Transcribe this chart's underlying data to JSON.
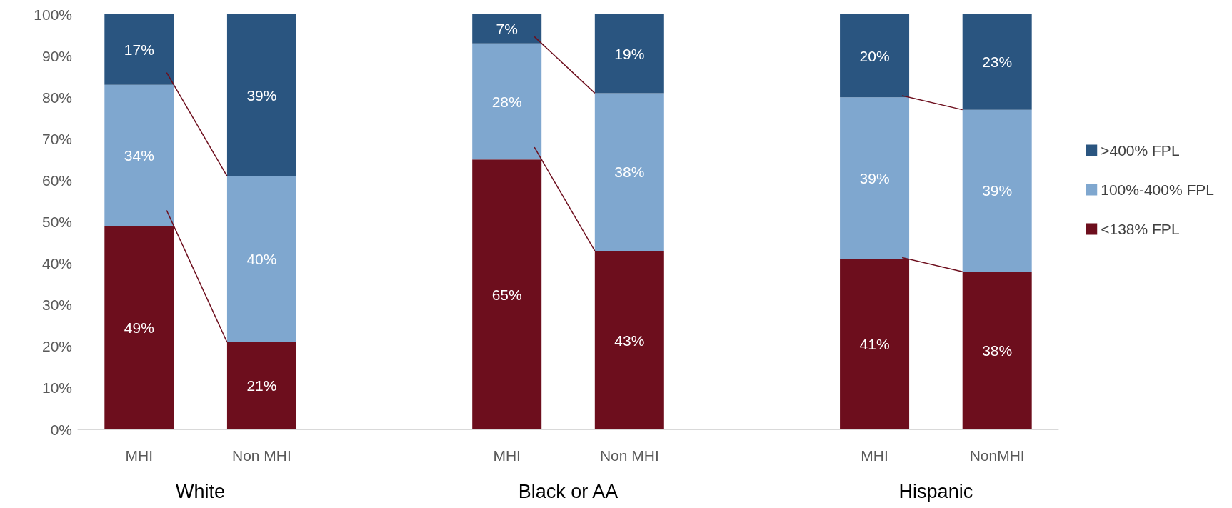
{
  "chart_data": {
    "type": "bar",
    "stacked": true,
    "categories": [
      "MHI",
      "Non MHI",
      null,
      "MHI",
      "Non MHI",
      null,
      "MHI",
      "NonMHI"
    ],
    "series": [
      {
        "name": "<138% FPL",
        "color": "#6d0e1d",
        "values": [
          49,
          21,
          null,
          65,
          43,
          null,
          41,
          38
        ],
        "value_labels": [
          "49%",
          "21%",
          null,
          "65%",
          "43%",
          null,
          "41%",
          "38%"
        ]
      },
      {
        "name": "100%-400% FPL",
        "color": "#7fa7cf",
        "values": [
          34,
          40,
          null,
          28,
          38,
          null,
          39,
          39
        ],
        "value_labels": [
          "34%",
          "40%",
          null,
          "28%",
          "38%",
          null,
          "39%",
          "39%"
        ]
      },
      {
        "name": ">400% FPL",
        "color": "#2a5580",
        "values": [
          17,
          39,
          null,
          7,
          19,
          null,
          20,
          23
        ],
        "value_labels": [
          "17%",
          "39%",
          null,
          "7%",
          "19%",
          null,
          "20%",
          "23%"
        ]
      }
    ],
    "ylim": [
      0,
      100
    ],
    "yticks": [
      {
        "value": 0,
        "label": "0%"
      },
      {
        "value": 10,
        "label": "10%"
      },
      {
        "value": 20,
        "label": "20%"
      },
      {
        "value": 30,
        "label": "30%"
      },
      {
        "value": 40,
        "label": "40%"
      },
      {
        "value": 50,
        "label": "50%"
      },
      {
        "value": 60,
        "label": "60%"
      },
      {
        "value": 70,
        "label": "70%"
      },
      {
        "value": 80,
        "label": "80%"
      },
      {
        "value": 90,
        "label": "90%"
      },
      {
        "value": 100,
        "label": "100%"
      }
    ],
    "grid": false,
    "legend": "right",
    "annotations": [
      "White",
      "Black or AA",
      "Hispanic"
    ]
  }
}
